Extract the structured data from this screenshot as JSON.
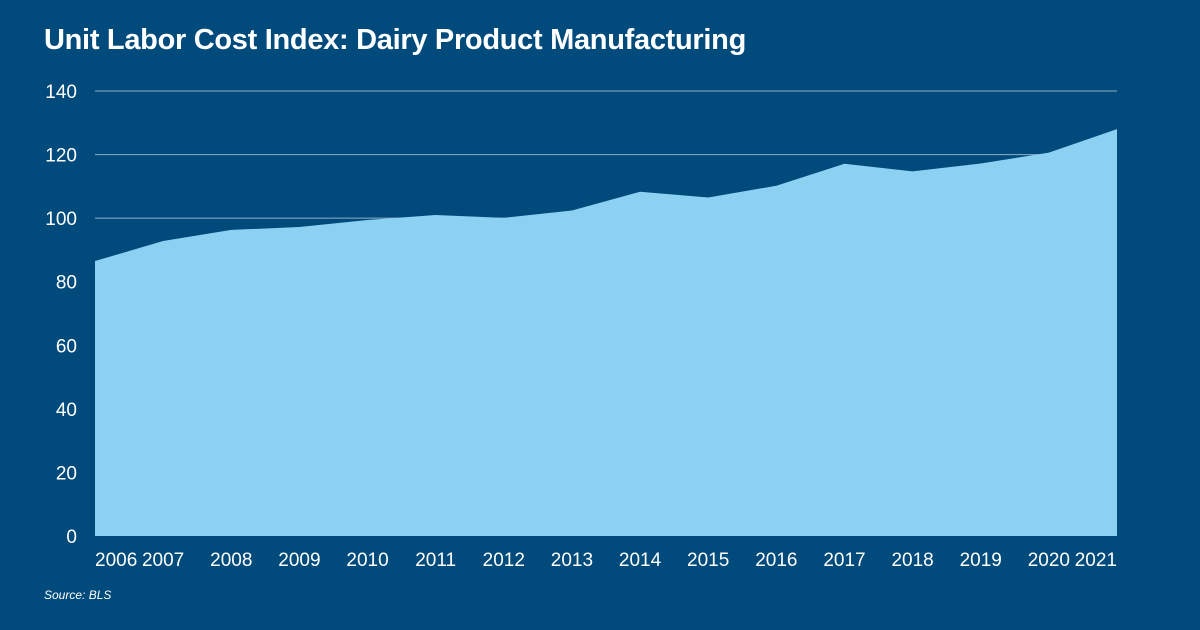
{
  "chart_data": {
    "type": "area",
    "title": "Unit Labor Cost Index: Dairy Product Manufacturing",
    "xlabel": "",
    "ylabel": "",
    "ylim": [
      0,
      140
    ],
    "yticks": [
      0,
      20,
      40,
      60,
      80,
      100,
      120,
      140
    ],
    "categories": [
      "2006",
      "2007",
      "2008",
      "2009",
      "2010",
      "2011",
      "2012",
      "2013",
      "2014",
      "2015",
      "2016",
      "2017",
      "2018",
      "2019",
      "2020",
      "2021"
    ],
    "values": [
      86.5,
      92.8,
      96.3,
      97.2,
      99.4,
      101.0,
      100.1,
      102.4,
      108.3,
      106.5,
      110.2,
      117.1,
      114.7,
      117.2,
      120.6,
      128.0
    ],
    "grid": true,
    "fill_color": "#8dd1f2",
    "background_color": "#004a7c",
    "gridline_color": "#8fb0c8"
  },
  "footer": {
    "source": "Source: BLS"
  }
}
